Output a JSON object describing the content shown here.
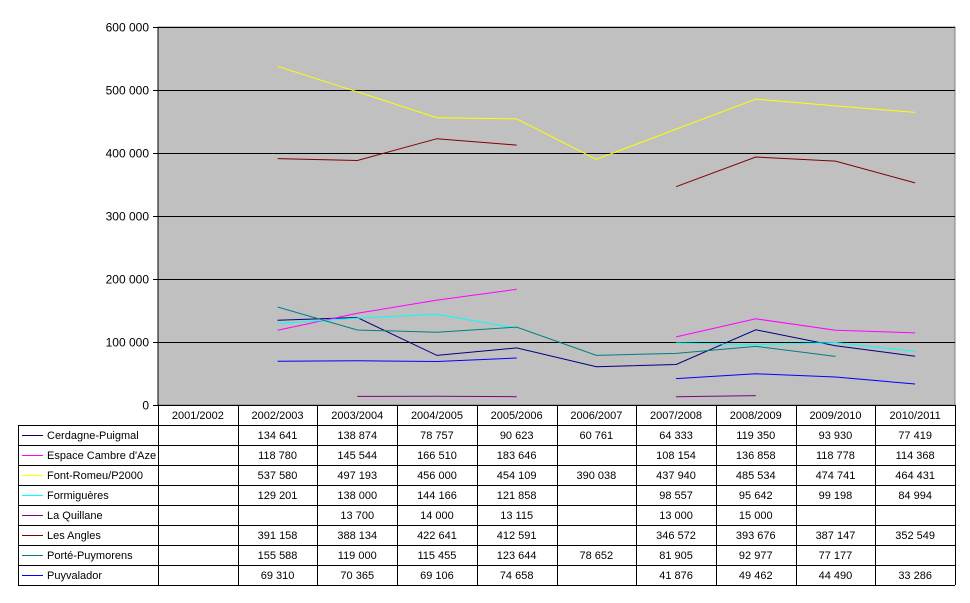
{
  "chart_data": {
    "type": "line",
    "categories": [
      "2001/2002",
      "2002/2003",
      "2003/2004",
      "2004/2005",
      "2005/2006",
      "2006/2007",
      "2007/2008",
      "2008/2009",
      "2009/2010",
      "2010/2011"
    ],
    "ylim": [
      0,
      600000
    ],
    "yticks": [
      0,
      100000,
      200000,
      300000,
      400000,
      500000,
      600000
    ],
    "ytick_labels": [
      "0",
      "100 000",
      "200 000",
      "300 000",
      "400 000",
      "500 000",
      "600 000"
    ],
    "grid": true,
    "plot_background": "#c0c0c0",
    "legend": "data-table-below",
    "series": [
      {
        "name": "Cerdagne-Puigmal",
        "color": "#000080",
        "values": [
          null,
          134641,
          138874,
          78757,
          90623,
          60761,
          64333,
          119350,
          93930,
          77419
        ],
        "labels": [
          "",
          "134 641",
          "138 874",
          "78 757",
          "90 623",
          "60 761",
          "64 333",
          "119 350",
          "93 930",
          "77 419"
        ]
      },
      {
        "name": "Espace Cambre d'Aze",
        "color": "#ff00ff",
        "values": [
          null,
          118780,
          145544,
          166510,
          183646,
          null,
          108154,
          136858,
          118778,
          114368
        ],
        "labels": [
          "",
          "118 780",
          "145 544",
          "166 510",
          "183 646",
          "",
          "108 154",
          "136 858",
          "118 778",
          "114 368"
        ]
      },
      {
        "name": "Font-Romeu/P2000",
        "color": "#ffff00",
        "values": [
          null,
          537580,
          497193,
          456000,
          454109,
          390038,
          437940,
          485534,
          474741,
          464431
        ],
        "labels": [
          "",
          "537 580",
          "497 193",
          "456 000",
          "454 109",
          "390 038",
          "437 940",
          "485 534",
          "474 741",
          "464 431"
        ]
      },
      {
        "name": "Formiguères",
        "color": "#00ffff",
        "values": [
          null,
          129201,
          138000,
          144166,
          121858,
          null,
          98557,
          95642,
          99198,
          84994
        ],
        "labels": [
          "",
          "129 201",
          "138 000",
          "144 166",
          "121 858",
          "",
          "98 557",
          "95 642",
          "99 198",
          "84 994"
        ]
      },
      {
        "name": "La Quillane",
        "color": "#800080",
        "values": [
          null,
          null,
          13700,
          14000,
          13115,
          null,
          13000,
          15000,
          null,
          null
        ],
        "labels": [
          "",
          "",
          "13 700",
          "14 000",
          "13 115",
          "",
          "13 000",
          "15 000",
          "",
          ""
        ]
      },
      {
        "name": "Les Angles",
        "color": "#800000",
        "values": [
          null,
          391158,
          388134,
          422641,
          412591,
          null,
          346572,
          393676,
          387147,
          352549
        ],
        "labels": [
          "",
          "391 158",
          "388 134",
          "422 641",
          "412 591",
          "",
          "346 572",
          "393 676",
          "387 147",
          "352 549"
        ]
      },
      {
        "name": "Porté-Puymorens",
        "color": "#008080",
        "values": [
          null,
          155588,
          119000,
          115455,
          123644,
          78652,
          81905,
          92977,
          77177,
          null
        ],
        "labels": [
          "",
          "155 588",
          "119 000",
          "115 455",
          "123 644",
          "78 652",
          "81 905",
          "92 977",
          "77 177",
          ""
        ]
      },
      {
        "name": "Puyvalador",
        "color": "#0000ff",
        "values": [
          null,
          69310,
          70365,
          69106,
          74658,
          null,
          41876,
          49462,
          44490,
          33286
        ],
        "labels": [
          "",
          "69 310",
          "70 365",
          "69 106",
          "74 658",
          "",
          "41 876",
          "49 462",
          "44 490",
          "33 286"
        ]
      }
    ]
  }
}
